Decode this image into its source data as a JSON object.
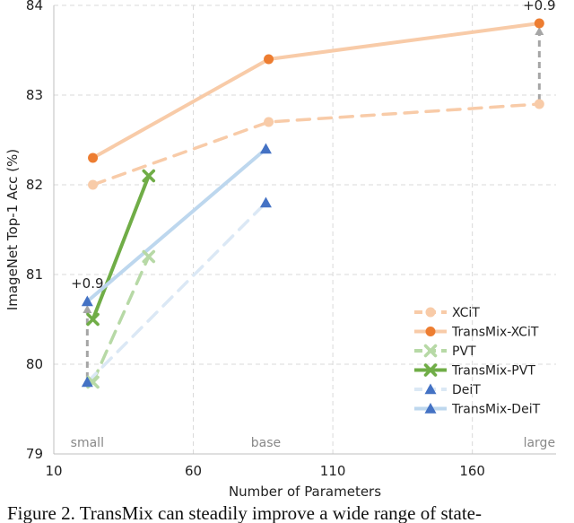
{
  "chart_data": {
    "type": "line",
    "xlabel": "Number of Parameters",
    "ylabel": "ImageNet Top-1 Acc (%)",
    "xlim": [
      10,
      190
    ],
    "ylim": [
      79,
      84
    ],
    "xticks": [
      10,
      60,
      110,
      160
    ],
    "yticks": [
      79,
      80,
      81,
      82,
      83,
      84
    ],
    "grid": true,
    "legend_position": "lower-right",
    "size_labels": [
      {
        "text": "small",
        "x": 22
      },
      {
        "text": "base",
        "x": 86
      },
      {
        "text": "large",
        "x": 184
      }
    ],
    "series": [
      {
        "name": "XCiT",
        "color": "#f8cba8",
        "marker": "circle",
        "dashed": true,
        "x": [
          24,
          87,
          184
        ],
        "y": [
          82.0,
          82.7,
          82.9
        ]
      },
      {
        "name": "TransMix-XCiT",
        "color": "#ed7d31",
        "line_color": "#f8cba8",
        "marker": "circle",
        "dashed": false,
        "x": [
          24,
          87,
          184
        ],
        "y": [
          82.3,
          83.4,
          83.8
        ]
      },
      {
        "name": "PVT",
        "color": "#b7d9a6",
        "marker": "x",
        "dashed": true,
        "x": [
          24,
          44
        ],
        "y": [
          79.8,
          81.2
        ]
      },
      {
        "name": "TransMix-PVT",
        "color": "#70ad47",
        "marker": "x",
        "dashed": false,
        "x": [
          24,
          44
        ],
        "y": [
          80.5,
          82.1
        ]
      },
      {
        "name": "DeiT",
        "color": "#4472c4",
        "line_color": "#dbe8f5",
        "marker": "triangle",
        "dashed": true,
        "x": [
          22,
          86
        ],
        "y": [
          79.8,
          81.8
        ]
      },
      {
        "name": "TransMix-DeiT",
        "color": "#4472c4",
        "line_color": "#bdd7ee",
        "marker": "triangle",
        "dashed": false,
        "x": [
          22,
          86
        ],
        "y": [
          80.7,
          82.4
        ]
      }
    ],
    "annotations": [
      {
        "text": "+0.9",
        "x": 22,
        "y_from": 79.8,
        "y_to": 80.7
      },
      {
        "text": "+0.9",
        "x": 184,
        "y_from": 82.9,
        "y_to": 83.8
      }
    ]
  },
  "caption": "Figure 2. TransMix can steadily improve a wide range of state-"
}
